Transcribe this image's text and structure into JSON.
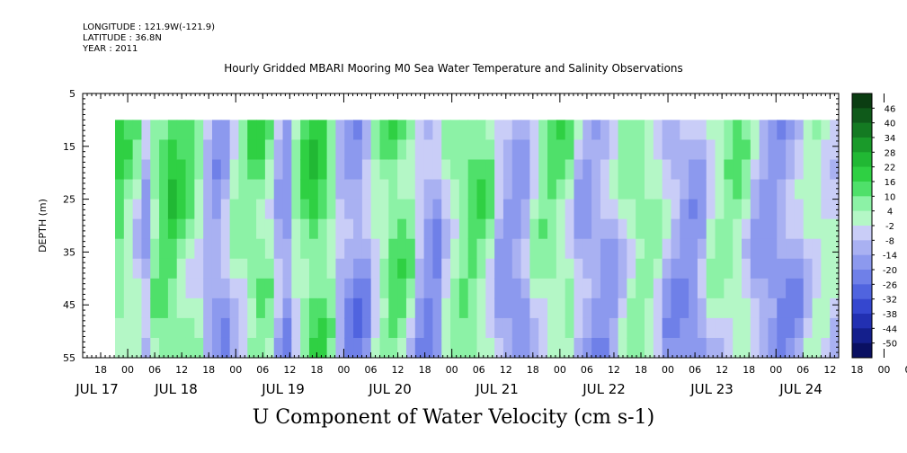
{
  "header": {
    "longitude": "LONGITUDE : 121.9W(-121.9)",
    "latitude": "LATITUDE : 36.8N",
    "year": "YEAR : 2011"
  },
  "chart_data": {
    "type": "heatmap",
    "title": "Hourly Gridded MBARI Mooring M0 Sea Water Temperature and Salinity Observations",
    "xlabel": "U Component of Water Velocity (cm s-1)",
    "ylabel": "DEPTH (m)",
    "ylim": [
      55,
      5
    ],
    "y_ticks": [
      5,
      15,
      25,
      35,
      45,
      55
    ],
    "data_depth_range": [
      10,
      55
    ],
    "x_hour_ticks": [
      "18",
      "00",
      "06",
      "12",
      "18",
      "00",
      "06",
      "12",
      "18",
      "00",
      "06",
      "12",
      "18",
      "00",
      "06",
      "12",
      "18",
      "00",
      "06",
      "12",
      "18",
      "00",
      "06",
      "12",
      "18",
      "00",
      "06",
      "12",
      "18",
      "00",
      "06",
      "12"
    ],
    "x_date_labels": [
      "JUL 17",
      "JUL 18",
      "JUL 19",
      "JUL 20",
      "JUL 21",
      "JUL 22",
      "JUL 23",
      "JUL 24"
    ],
    "colorbar": {
      "labels": [
        "46",
        "40",
        "34",
        "28",
        "22",
        "16",
        "10",
        "4",
        "-2",
        "-8",
        "-14",
        "-20",
        "-26",
        "-32",
        "-38",
        "-44",
        "-50"
      ],
      "colors": [
        "#0b3d12",
        "#0f5a1a",
        "#147a22",
        "#1a9a2a",
        "#21b834",
        "#2fd043",
        "#4fe06a",
        "#8cf2a6",
        "#b4f7c6",
        "#c9cdf7",
        "#a9b1f2",
        "#8c99ee",
        "#6f80e8",
        "#5064df",
        "#3547cf",
        "#2230b2",
        "#141f8c",
        "#0a1062"
      ]
    },
    "column_u_cm_s": [
      14,
      9,
      4,
      -6,
      10,
      15,
      18,
      14,
      10,
      6,
      -4,
      -9,
      -6,
      3,
      8,
      12,
      13,
      9,
      -5,
      -10,
      6,
      14,
      18,
      16,
      10,
      -4,
      -9,
      -12,
      -6,
      4,
      10,
      15,
      13,
      8,
      -5,
      -10,
      -9,
      2,
      8,
      12,
      14,
      12,
      7,
      -4,
      -8,
      -9,
      -7,
      3,
      8,
      11,
      10,
      7,
      -4,
      -8,
      -9,
      -8,
      -5,
      4,
      8,
      10,
      8,
      5,
      -4,
      -7,
      -9,
      -10,
      -6,
      3,
      6,
      9,
      8,
      4,
      -4,
      -8,
      -10,
      -11,
      -8,
      -5,
      3,
      5,
      4,
      2
    ]
  }
}
